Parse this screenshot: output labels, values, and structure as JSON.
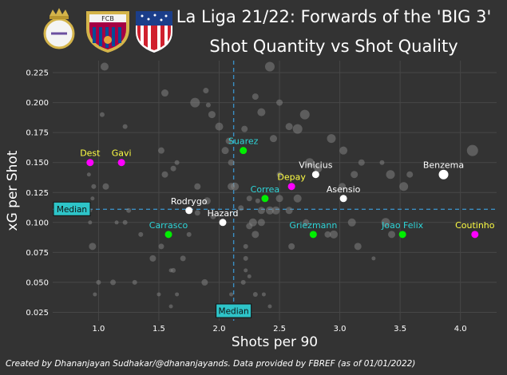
{
  "title": "La Liga 21/22: Forwards of the 'BIG 3'",
  "subtitle": "Shot Quantity vs Shot Quality",
  "credit": "Created by Dhananjayan Sudhakar/@dhananjayands. Data provided by FBREF (as of 01/01/2022)",
  "logos": [
    {
      "name": "real-madrid-crest"
    },
    {
      "name": "barcelona-crest",
      "text": "FCB"
    },
    {
      "name": "atletico-madrid-crest"
    }
  ],
  "colors": {
    "background": "#333333",
    "grid": "#474747",
    "median_line": "#3a8fc4",
    "median_box": "#2ec4c8",
    "real_madrid": "#ffffff",
    "barcelona": "#ff00ff",
    "atletico": "#00ee00",
    "label_real": "#ffffff",
    "label_barca_young": "#ffff44",
    "label_cyan": "#2ed5d8",
    "other": "#888888"
  },
  "chart_data": {
    "type": "scatter",
    "xlabel": "Shots per 90",
    "ylabel": "xG per Shot",
    "xlim": [
      0.62,
      4.3
    ],
    "ylim": [
      0.018,
      0.235
    ],
    "xticks": [
      "1.0",
      "1.5",
      "2.0",
      "2.5",
      "3.0",
      "3.5",
      "4.0"
    ],
    "yticks": [
      "0.025",
      "0.050",
      "0.075",
      "0.100",
      "0.125",
      "0.150",
      "0.175",
      "0.200",
      "0.225"
    ],
    "grid": true,
    "median": {
      "x": 2.12,
      "y": 0.111,
      "label": "Median"
    },
    "highlighted": [
      {
        "name": "Benzema",
        "team": "real_madrid",
        "label_color": "label_real",
        "x": 3.86,
        "y": 0.14
      },
      {
        "name": "Vinicius",
        "team": "real_madrid",
        "label_color": "label_real",
        "x": 2.8,
        "y": 0.14
      },
      {
        "name": "Asensio",
        "team": "real_madrid",
        "label_color": "label_real",
        "x": 3.03,
        "y": 0.12
      },
      {
        "name": "Rodrygo",
        "team": "real_madrid",
        "label_color": "label_real",
        "x": 1.75,
        "y": 0.11
      },
      {
        "name": "Hazard",
        "team": "real_madrid",
        "label_color": "label_real",
        "x": 2.03,
        "y": 0.1
      },
      {
        "name": "Dest",
        "team": "barcelona",
        "label_color": "label_barca_young",
        "x": 0.93,
        "y": 0.15
      },
      {
        "name": "Gavi",
        "team": "barcelona",
        "label_color": "label_barca_young",
        "x": 1.19,
        "y": 0.15
      },
      {
        "name": "Depay",
        "team": "barcelona",
        "label_color": "label_barca_young",
        "x": 2.6,
        "y": 0.13
      },
      {
        "name": "Coutinho",
        "team": "barcelona",
        "label_color": "label_barca_young",
        "x": 4.12,
        "y": 0.09
      },
      {
        "name": "Suarez",
        "team": "atletico",
        "label_color": "label_cyan",
        "x": 2.2,
        "y": 0.16
      },
      {
        "name": "Correa",
        "team": "atletico",
        "label_color": "label_cyan",
        "x": 2.38,
        "y": 0.12
      },
      {
        "name": "Carrasco",
        "team": "atletico",
        "label_color": "label_cyan",
        "x": 1.58,
        "y": 0.09
      },
      {
        "name": "Griezmann",
        "team": "atletico",
        "label_color": "label_cyan",
        "x": 2.78,
        "y": 0.09
      },
      {
        "name": "Joao Felix",
        "team": "atletico",
        "label_color": "label_cyan",
        "x": 3.52,
        "y": 0.09
      }
    ],
    "others": [
      {
        "x": 1.05,
        "y": 0.23
      },
      {
        "x": 2.42,
        "y": 0.23
      },
      {
        "x": 1.89,
        "y": 0.21
      },
      {
        "x": 1.55,
        "y": 0.208
      },
      {
        "x": 2.3,
        "y": 0.205
      },
      {
        "x": 1.8,
        "y": 0.2
      },
      {
        "x": 1.91,
        "y": 0.198
      },
      {
        "x": 2.5,
        "y": 0.2
      },
      {
        "x": 2.35,
        "y": 0.192
      },
      {
        "x": 1.03,
        "y": 0.19
      },
      {
        "x": 1.94,
        "y": 0.19
      },
      {
        "x": 2.71,
        "y": 0.19
      },
      {
        "x": 1.22,
        "y": 0.18
      },
      {
        "x": 2.0,
        "y": 0.18
      },
      {
        "x": 2.21,
        "y": 0.178
      },
      {
        "x": 2.58,
        "y": 0.18
      },
      {
        "x": 2.45,
        "y": 0.17
      },
      {
        "x": 2.65,
        "y": 0.178
      },
      {
        "x": 2.93,
        "y": 0.17
      },
      {
        "x": 2.08,
        "y": 0.168
      },
      {
        "x": 1.52,
        "y": 0.16
      },
      {
        "x": 2.05,
        "y": 0.16
      },
      {
        "x": 3.03,
        "y": 0.16
      },
      {
        "x": 4.1,
        "y": 0.16
      },
      {
        "x": 1.65,
        "y": 0.15
      },
      {
        "x": 1.62,
        "y": 0.145
      },
      {
        "x": 2.1,
        "y": 0.15
      },
      {
        "x": 2.75,
        "y": 0.15
      },
      {
        "x": 2.82,
        "y": 0.145
      },
      {
        "x": 3.18,
        "y": 0.15
      },
      {
        "x": 3.35,
        "y": 0.15
      },
      {
        "x": 3.42,
        "y": 0.14
      },
      {
        "x": 3.58,
        "y": 0.14
      },
      {
        "x": 3.12,
        "y": 0.14
      },
      {
        "x": 2.5,
        "y": 0.14
      },
      {
        "x": 1.55,
        "y": 0.14
      },
      {
        "x": 0.92,
        "y": 0.14
      },
      {
        "x": 1.06,
        "y": 0.13
      },
      {
        "x": 0.96,
        "y": 0.13
      },
      {
        "x": 1.82,
        "y": 0.13
      },
      {
        "x": 2.1,
        "y": 0.13
      },
      {
        "x": 2.13,
        "y": 0.13
      },
      {
        "x": 3.02,
        "y": 0.13
      },
      {
        "x": 3.53,
        "y": 0.13
      },
      {
        "x": 2.25,
        "y": 0.12
      },
      {
        "x": 2.32,
        "y": 0.118
      },
      {
        "x": 2.5,
        "y": 0.12
      },
      {
        "x": 2.65,
        "y": 0.12
      },
      {
        "x": 0.95,
        "y": 0.12
      },
      {
        "x": 1.9,
        "y": 0.118
      },
      {
        "x": 2.18,
        "y": 0.112
      },
      {
        "x": 2.35,
        "y": 0.11
      },
      {
        "x": 2.42,
        "y": 0.11
      },
      {
        "x": 2.47,
        "y": 0.11
      },
      {
        "x": 2.58,
        "y": 0.11
      },
      {
        "x": 1.82,
        "y": 0.108
      },
      {
        "x": 0.93,
        "y": 0.11
      },
      {
        "x": 1.25,
        "y": 0.11
      },
      {
        "x": 1.95,
        "y": 0.105
      },
      {
        "x": 2.28,
        "y": 0.1
      },
      {
        "x": 2.25,
        "y": 0.097
      },
      {
        "x": 2.35,
        "y": 0.1
      },
      {
        "x": 2.72,
        "y": 0.1
      },
      {
        "x": 3.1,
        "y": 0.1
      },
      {
        "x": 3.38,
        "y": 0.1
      },
      {
        "x": 0.93,
        "y": 0.1
      },
      {
        "x": 1.15,
        "y": 0.1
      },
      {
        "x": 1.22,
        "y": 0.1
      },
      {
        "x": 2.3,
        "y": 0.09
      },
      {
        "x": 1.35,
        "y": 0.09
      },
      {
        "x": 1.75,
        "y": 0.09
      },
      {
        "x": 2.9,
        "y": 0.09
      },
      {
        "x": 2.95,
        "y": 0.09
      },
      {
        "x": 3.43,
        "y": 0.09
      },
      {
        "x": 3.15,
        "y": 0.08
      },
      {
        "x": 1.52,
        "y": 0.08
      },
      {
        "x": 2.22,
        "y": 0.08
      },
      {
        "x": 2.6,
        "y": 0.08
      },
      {
        "x": 0.95,
        "y": 0.08
      },
      {
        "x": 3.28,
        "y": 0.07
      },
      {
        "x": 1.45,
        "y": 0.07
      },
      {
        "x": 1.7,
        "y": 0.07
      },
      {
        "x": 2.22,
        "y": 0.07
      },
      {
        "x": 1.62,
        "y": 0.06
      },
      {
        "x": 1.6,
        "y": 0.06
      },
      {
        "x": 2.22,
        "y": 0.06
      },
      {
        "x": 2.25,
        "y": 0.055
      },
      {
        "x": 1.0,
        "y": 0.05
      },
      {
        "x": 1.12,
        "y": 0.05
      },
      {
        "x": 1.3,
        "y": 0.05
      },
      {
        "x": 1.88,
        "y": 0.05
      },
      {
        "x": 2.2,
        "y": 0.05
      },
      {
        "x": 1.5,
        "y": 0.04
      },
      {
        "x": 1.65,
        "y": 0.04
      },
      {
        "x": 2.1,
        "y": 0.04
      },
      {
        "x": 2.3,
        "y": 0.04
      },
      {
        "x": 2.37,
        "y": 0.04
      },
      {
        "x": 0.97,
        "y": 0.04
      },
      {
        "x": 1.6,
        "y": 0.03
      },
      {
        "x": 2.42,
        "y": 0.03
      }
    ],
    "other_sizes": [
      10,
      12,
      7,
      9,
      8,
      12,
      6,
      8,
      10,
      6,
      9,
      12,
      6,
      10,
      8,
      9,
      9,
      12,
      11,
      8,
      8,
      9,
      10,
      14,
      6,
      7,
      8,
      11,
      10,
      8,
      6,
      11,
      8,
      9,
      7,
      8,
      5,
      8,
      6,
      8,
      9,
      10,
      9,
      11,
      7,
      6,
      9,
      10,
      5,
      9,
      7,
      9,
      10,
      10,
      9,
      7,
      5,
      6,
      7,
      10,
      8,
      9,
      8,
      10,
      11,
      5,
      5,
      6,
      9,
      6,
      6,
      8,
      10,
      9,
      9,
      7,
      6,
      8,
      9,
      5,
      8,
      7,
      6,
      6,
      5,
      5,
      5,
      6,
      7,
      6,
      8,
      6,
      5,
      5,
      5,
      6,
      5,
      5,
      5,
      5
    ]
  }
}
